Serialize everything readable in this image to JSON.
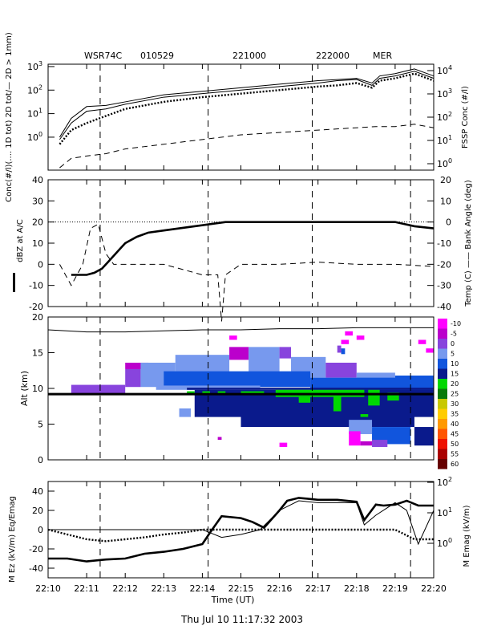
{
  "header": {
    "radar": "WSR74C",
    "date": "010529",
    "t_start": "221000",
    "t_end": "222000",
    "site": "MER"
  },
  "footer": {
    "timestamp": "Thu Jul 10 11:17:32 2003"
  },
  "chart_data": [
    {
      "type": "line",
      "panel": "concentration",
      "x_ticks": [
        "22:10",
        "22:11",
        "22:12",
        "22:13",
        "22:14",
        "22:15",
        "22:16",
        "22:17",
        "22:18",
        "22:19",
        "22:20"
      ],
      "xlim": [
        0,
        10
      ],
      "ylabel_left": "Conc(#/l)(.... 1D tot) 2D tot/— 2D > 1mm)",
      "ylabel_right": "FSSP Conc (#/l)",
      "y_left_ticks": [
        "10",
        "10",
        "10",
        "10"
      ],
      "y_left_tick_exp": [
        "0",
        "1",
        "2",
        "3"
      ],
      "y_right_ticks": [
        "10",
        "10",
        "10",
        "10",
        "10"
      ],
      "y_right_tick_exp": [
        "0",
        "1",
        "2",
        "3",
        "4"
      ],
      "ylim_left_log": [
        -1.4,
        3.1
      ],
      "series": [
        {
          "style": "solid",
          "x": [
            0.3,
            0.6,
            1.0,
            1.5,
            2.0,
            3.0,
            4.0,
            5.0,
            6.0,
            7.0,
            7.5,
            8.0,
            8.4,
            8.6,
            9.0,
            9.5,
            10.0
          ],
          "y": [
            0.0,
            0.8,
            1.3,
            1.35,
            1.5,
            1.8,
            1.95,
            2.1,
            2.25,
            2.4,
            2.45,
            2.5,
            2.3,
            2.6,
            2.7,
            2.9,
            2.6
          ]
        },
        {
          "style": "solid",
          "x": [
            0.3,
            0.6,
            1.0,
            1.5,
            2.0,
            3.0,
            4.0,
            5.0,
            6.0,
            7.0,
            7.5,
            8.0,
            8.4,
            8.6,
            9.0,
            9.5,
            10.0
          ],
          "y": [
            -0.1,
            0.6,
            1.1,
            1.2,
            1.4,
            1.7,
            1.85,
            2.0,
            2.15,
            2.3,
            2.4,
            2.45,
            2.2,
            2.5,
            2.6,
            2.8,
            2.5
          ]
        },
        {
          "style": "dotted",
          "x": [
            0.3,
            0.6,
            1.0,
            1.5,
            2.0,
            3.0,
            4.0,
            5.0,
            6.0,
            7.0,
            7.5,
            8.0,
            8.4,
            8.6,
            9.0,
            9.5,
            10.0
          ],
          "y": [
            -0.3,
            0.3,
            0.6,
            0.9,
            1.2,
            1.5,
            1.7,
            1.85,
            2.0,
            2.15,
            2.2,
            2.3,
            2.1,
            2.4,
            2.5,
            2.7,
            2.4
          ]
        },
        {
          "style": "dashed",
          "x": [
            0.3,
            0.6,
            1.0,
            1.5,
            2.0,
            3.0,
            4.0,
            5.0,
            6.0,
            7.0,
            7.5,
            8.0,
            8.5,
            9.0,
            9.5,
            10.0
          ],
          "y": [
            -1.3,
            -0.9,
            -0.8,
            -0.7,
            -0.5,
            -0.3,
            -0.1,
            0.1,
            0.2,
            0.3,
            0.35,
            0.4,
            0.45,
            0.45,
            0.55,
            0.4
          ]
        }
      ]
    },
    {
      "type": "line",
      "panel": "reflectivity",
      "ylabel_left": "dBZ at A/C",
      "ylabel_right": "Temp (C) —— Bank Angle (deg)",
      "y_left_ticks": [
        "-20",
        "-10",
        "0",
        "10",
        "20",
        "30",
        "40"
      ],
      "y_right_ticks": [
        "-40",
        "-30",
        "-20",
        "-10",
        "0",
        "10",
        "20"
      ],
      "ylim_left": [
        -20,
        40
      ],
      "ylim_right": [
        -40,
        20
      ],
      "series": [
        {
          "style": "thick",
          "x": [
            0.6,
            1.0,
            1.2,
            1.4,
            1.6,
            1.8,
            2.0,
            2.3,
            2.6,
            3.0,
            3.4,
            3.8,
            4.2,
            4.6,
            5.0,
            6.0,
            7.0,
            8.0,
            8.5,
            9.0,
            9.5,
            10.0
          ],
          "y": [
            -5,
            -5,
            -4,
            -2,
            2,
            6,
            10,
            13,
            15,
            16,
            17,
            18,
            19,
            20,
            20,
            20,
            20,
            20,
            20,
            20,
            18,
            17
          ]
        },
        {
          "style": "dashed",
          "x": [
            0.3,
            0.6,
            0.9,
            1.1,
            1.3,
            1.5,
            1.7,
            2.0,
            3.0,
            4.0,
            4.4,
            4.5,
            4.6,
            5.0,
            6.0,
            7.0,
            8.0,
            9.0,
            10.0
          ],
          "y": [
            0,
            -10,
            0,
            17,
            19,
            5,
            0,
            0,
            0,
            -5,
            -5,
            -27,
            -5,
            0,
            0,
            1,
            0,
            0,
            -1
          ]
        },
        {
          "style": "thin",
          "x": [
            0,
            1,
            2,
            3,
            4,
            5,
            6,
            7,
            8,
            9,
            10
          ],
          "y": [
            -31,
            -32,
            -32,
            -31.5,
            -31,
            -31,
            -30.5,
            -30.5,
            -30,
            -30,
            -30
          ]
        }
      ]
    },
    {
      "type": "heatmap",
      "panel": "radar",
      "ylabel": "Alt (km)",
      "y_ticks": [
        "0",
        "5",
        "10",
        "15",
        "20"
      ],
      "ylim": [
        0,
        20
      ],
      "colorbar": [
        "-10",
        "-5",
        "0",
        "5",
        "10",
        "15",
        "20",
        "25",
        "30",
        "35",
        "40",
        "45",
        "50",
        "55",
        "60"
      ],
      "colors": [
        "#ff00ff",
        "#bb00cc",
        "#8844dd",
        "#7799ee",
        "#1155dd",
        "#0a1a8c",
        "#00d800",
        "#0a7a0a",
        "#c8c800",
        "#ffcc00",
        "#ff9900",
        "#ff5500",
        "#ee1100",
        "#aa0000",
        "#660000"
      ],
      "flight_altitude_km": 9.2,
      "cells": [
        [
          0.6,
          2.0,
          9.3,
          10.5,
          2
        ],
        [
          2.0,
          2.4,
          10.2,
          12.7,
          2
        ],
        [
          2.0,
          2.6,
          12.7,
          13.6,
          1
        ],
        [
          2.4,
          3.3,
          10.2,
          13.6,
          3
        ],
        [
          3.3,
          4.7,
          11.2,
          14.7,
          3
        ],
        [
          4.7,
          5.2,
          14.0,
          15.8,
          1
        ],
        [
          5.2,
          6.0,
          11.0,
          15.8,
          3
        ],
        [
          6.0,
          6.3,
          14.2,
          15.8,
          2
        ],
        [
          6.3,
          7.2,
          11.5,
          14.4,
          3
        ],
        [
          7.2,
          8.0,
          11.5,
          13.6,
          2
        ],
        [
          8.0,
          9.0,
          10.2,
          12.2,
          3
        ],
        [
          9.0,
          10.0,
          10.2,
          11.8,
          4
        ],
        [
          3.0,
          6.8,
          10.2,
          12.4,
          4
        ],
        [
          6.8,
          10.0,
          9.5,
          11.5,
          4
        ],
        [
          2.8,
          5.5,
          9.8,
          10.4,
          3
        ],
        [
          3.6,
          10.0,
          9.8,
          10.1,
          5
        ],
        [
          3.8,
          10.0,
          6.0,
          9.8,
          5
        ],
        [
          5.0,
          9.5,
          4.6,
          6.2,
          5
        ],
        [
          9.5,
          10.0,
          2.0,
          4.6,
          5
        ],
        [
          5.0,
          5.6,
          9.2,
          9.6,
          6
        ],
        [
          5.9,
          8.2,
          8.8,
          9.8,
          6
        ],
        [
          6.5,
          6.8,
          8.0,
          8.8,
          6
        ],
        [
          7.4,
          7.6,
          6.8,
          9.0,
          6
        ],
        [
          8.3,
          8.6,
          7.6,
          9.8,
          6
        ],
        [
          8.8,
          9.1,
          8.3,
          9.4,
          6
        ],
        [
          3.6,
          3.8,
          9.2,
          9.6,
          6
        ],
        [
          4.0,
          4.2,
          9.2,
          9.6,
          6
        ],
        [
          4.4,
          4.6,
          9.2,
          9.6,
          6
        ],
        [
          8.1,
          8.3,
          6.0,
          6.4,
          6
        ],
        [
          3.4,
          3.7,
          6.0,
          7.2,
          3
        ],
        [
          7.8,
          8.4,
          3.6,
          5.6,
          3
        ],
        [
          8.4,
          9.4,
          2.2,
          4.6,
          4
        ],
        [
          7.8,
          8.1,
          2.0,
          4.0,
          0
        ],
        [
          8.1,
          8.4,
          2.0,
          2.6,
          1
        ],
        [
          8.4,
          8.8,
          1.8,
          2.8,
          2
        ],
        [
          6.0,
          6.2,
          1.8,
          2.4,
          0
        ],
        [
          7.6,
          7.8,
          16.2,
          16.8,
          0
        ],
        [
          7.7,
          7.9,
          17.4,
          18.0,
          0
        ],
        [
          8.0,
          8.2,
          16.8,
          17.4,
          0
        ],
        [
          7.6,
          7.7,
          14.8,
          15.6,
          4
        ],
        [
          7.5,
          7.6,
          15.0,
          16.0,
          2
        ],
        [
          9.6,
          9.8,
          16.2,
          16.8,
          0
        ],
        [
          9.8,
          10.0,
          15.0,
          15.6,
          0
        ],
        [
          4.7,
          4.9,
          16.8,
          17.4,
          0
        ],
        [
          4.4,
          4.5,
          2.8,
          3.2,
          1
        ]
      ]
    },
    {
      "type": "line",
      "panel": "electric_field",
      "ylabel_left": "M Ez (kV/m) Eq/Emag",
      "ylabel_right": "M Emag (kV/m)",
      "y_left_ticks": [
        "-40",
        "-20",
        "0",
        "20",
        "40"
      ],
      "ylim_left": [
        -50,
        50
      ],
      "y_right_ticks": [
        "10",
        "10",
        "10"
      ],
      "y_right_tick_exp": [
        "0",
        "1",
        "2"
      ],
      "series": [
        {
          "style": "thick",
          "x": [
            0.0,
            0.5,
            1.0,
            1.5,
            2.0,
            2.5,
            3.0,
            3.5,
            4.0,
            4.2,
            4.5,
            5.0,
            5.3,
            5.6,
            6.0,
            6.2,
            6.5,
            7.0,
            7.5,
            8.0,
            8.2,
            8.5,
            8.7,
            9.0,
            9.3,
            9.6,
            10.0
          ],
          "y": [
            -30,
            -30,
            -33,
            -31,
            -30,
            -25,
            -23,
            -20,
            -15,
            -3,
            14,
            12,
            8,
            2,
            20,
            30,
            33,
            31,
            31,
            29,
            10,
            26,
            25,
            26,
            30,
            25,
            25
          ]
        },
        {
          "style": "thin",
          "x": [
            0.0,
            1.0,
            2.0,
            3.0,
            4.0,
            4.5,
            5.0,
            5.5,
            6.0,
            6.5,
            7.0,
            8.0,
            8.2,
            8.5,
            9.0,
            9.3,
            9.6,
            10.0
          ],
          "y": [
            0,
            0,
            0,
            0,
            0,
            -8,
            -5,
            0,
            20,
            30,
            28,
            28,
            5,
            15,
            28,
            20,
            -15,
            20
          ]
        },
        {
          "style": "dotted",
          "x": [
            0.0,
            0.5,
            1.0,
            1.5,
            2.0,
            2.5,
            3.0,
            3.5,
            4.0,
            4.5,
            5.0,
            5.5,
            6.0,
            7.0,
            8.0,
            9.0,
            9.5,
            10.0
          ],
          "y": [
            0,
            -5,
            -10,
            -12,
            -10,
            -8,
            -5,
            -3,
            0,
            0,
            0,
            0,
            0,
            0,
            0,
            0,
            -10,
            -10
          ]
        }
      ]
    }
  ],
  "xlabel": "Time (UT)",
  "vertical_markers": [
    1.35,
    4.15,
    6.85,
    9.4
  ]
}
